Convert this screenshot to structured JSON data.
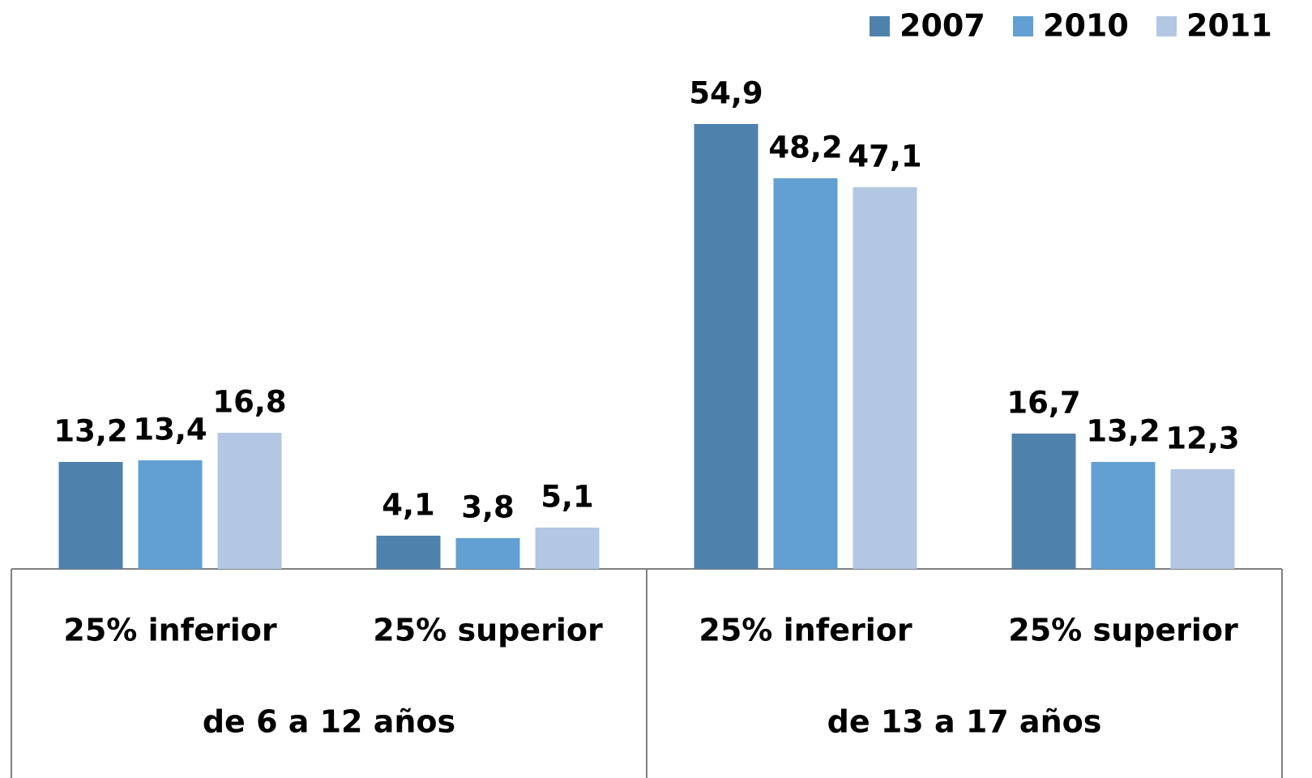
{
  "chart_data": {
    "type": "bar",
    "categories": [
      "25% inferior",
      "25% superior",
      "25% inferior",
      "25% superior"
    ],
    "groups": [
      "de 6 a 12 años",
      "de 13 a 17 años"
    ],
    "series": [
      {
        "name": "2007",
        "color": "#4f81ad",
        "values": [
          13.2,
          4.1,
          54.9,
          16.7
        ],
        "value_labels": [
          "13,2",
          "4,1",
          "54,9",
          "16,7"
        ]
      },
      {
        "name": "2010",
        "color": "#629fd3",
        "values": [
          13.4,
          3.8,
          48.2,
          13.2
        ],
        "value_labels": [
          "13,4",
          "3,8",
          "48,2",
          "13,2"
        ]
      },
      {
        "name": "2011",
        "color": "#b3c7e3",
        "values": [
          16.8,
          5.1,
          47.1,
          12.3
        ],
        "value_labels": [
          "16,8",
          "5,1",
          "47,1",
          "12,3"
        ]
      }
    ],
    "ylim": [
      0,
      55
    ],
    "legend": "top-right"
  }
}
